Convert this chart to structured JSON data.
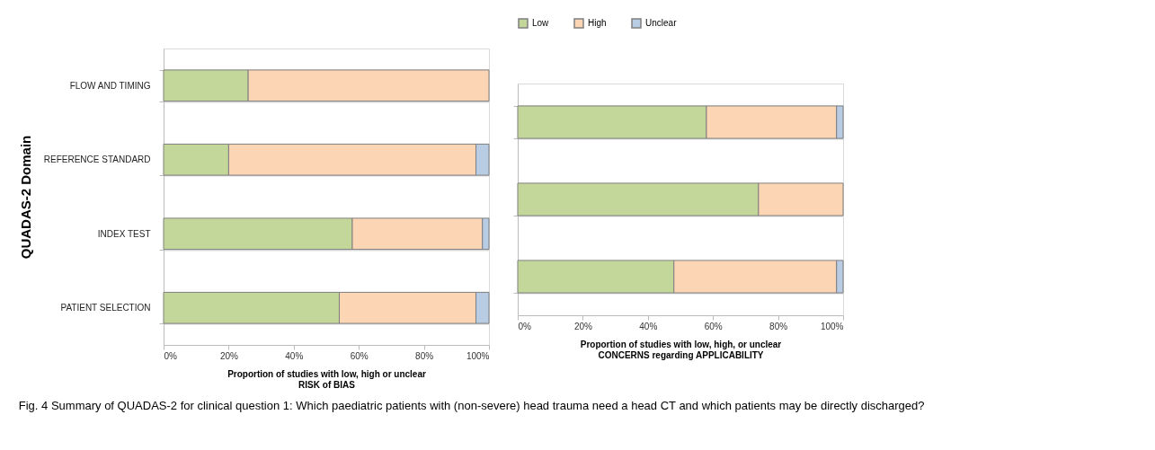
{
  "chart_data": [
    {
      "type": "bar",
      "orientation": "horizontal",
      "stacked": true,
      "ylabel": "QUADAS-2 Domain",
      "xlabel": "Proportion of studies with low, high or unclear\nRISK of BIAS",
      "categories": [
        "FLOW AND TIMING",
        "REFERENCE STANDARD",
        "INDEX TEST",
        "PATIENT SELECTION"
      ],
      "series": [
        {
          "color": "#c4d79b",
          "values": [
            26,
            20,
            58,
            54
          ]
        },
        {
          "color": "#fcd5b4",
          "values": [
            74,
            76,
            40,
            42
          ]
        },
        {
          "color": "#b8cce4",
          "values": [
            null,
            4,
            2,
            4
          ]
        }
      ],
      "xlim": [
        0,
        100
      ],
      "xticks": [
        {
          "value": 0,
          "label": "0%"
        },
        {
          "value": 20,
          "label": "20%"
        },
        {
          "value": 40,
          "label": "40%"
        },
        {
          "value": 60,
          "label": "60%"
        },
        {
          "value": 80,
          "label": "80%"
        },
        {
          "value": 100,
          "label": "100%"
        }
      ],
      "grid": "y",
      "legend": false,
      "annotations": [
        "Fig. 4 Summary of QUADAS-2 for clinical question 1: Which paediatric patients with (non-severe) head trauma need a head CT and which patients may be directly discharged?"
      ]
    },
    {
      "type": "bar",
      "orientation": "horizontal",
      "stacked": true,
      "xlabel": "Proportion of studies with low, high, or unclear\nCONCERNS regarding APPLICABILITY",
      "categories": [
        null,
        null,
        null
      ],
      "series": [
        {
          "name": "Low",
          "color": "#c4d79b",
          "values": [
            58,
            74,
            48
          ]
        },
        {
          "name": "High",
          "color": "#fcd5b4",
          "values": [
            40,
            26,
            50
          ]
        },
        {
          "name": "Unclear",
          "color": "#b8cce4",
          "values": [
            2,
            null,
            2
          ]
        }
      ],
      "xlim": [
        0,
        100
      ],
      "xticks": [
        {
          "value": 0,
          "label": "0%"
        },
        {
          "value": 20,
          "label": "20%"
        },
        {
          "value": 40,
          "label": "40%"
        },
        {
          "value": 60,
          "label": "60%"
        },
        {
          "value": 80,
          "label": "80%"
        },
        {
          "value": 100,
          "label": "100%"
        }
      ],
      "grid": "y",
      "legend": "top left",
      "tick_labels": "x"
    }
  ]
}
